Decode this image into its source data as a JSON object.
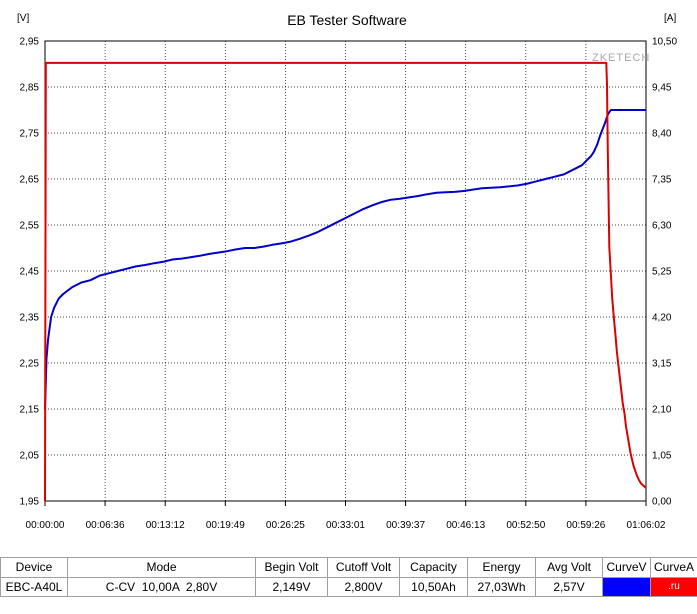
{
  "chart_data": {
    "type": "line",
    "title": "EB Tester Software",
    "brand": "ZKETECH",
    "y_left_unit": "[V]",
    "y_right_unit": "[A]",
    "y_left_ticks": [
      "2,95",
      "2,85",
      "2,75",
      "2,65",
      "2,55",
      "2,45",
      "2,35",
      "2,25",
      "2,15",
      "2,05",
      "1,95"
    ],
    "y_right_ticks": [
      "10,50",
      "9,45",
      "8,40",
      "7,35",
      "6,30",
      "5,25",
      "4,20",
      "3,15",
      "2,10",
      "1,05",
      "0,00"
    ],
    "x_ticks": [
      "00:00:00",
      "00:06:36",
      "00:13:12",
      "00:19:49",
      "00:26:25",
      "00:33:01",
      "00:39:37",
      "00:46:13",
      "00:52:50",
      "00:59:26",
      "01:06:02"
    ],
    "x_range_seconds": [
      0,
      3962
    ],
    "ylim_left": [
      1.95,
      2.95
    ],
    "ylim_right": [
      0,
      10.5
    ],
    "grid": true,
    "series": [
      {
        "axis": "left",
        "color": "#0000c8",
        "x_seconds": [
          0,
          10,
          20,
          40,
          60,
          90,
          120,
          180,
          240,
          300,
          360,
          420,
          480,
          540,
          600,
          660,
          720,
          780,
          840,
          900,
          960,
          1020,
          1080,
          1140,
          1200,
          1260,
          1320,
          1380,
          1440,
          1500,
          1560,
          1620,
          1680,
          1740,
          1800,
          1860,
          1920,
          1980,
          2040,
          2100,
          2160,
          2220,
          2280,
          2340,
          2400,
          2460,
          2520,
          2580,
          2640,
          2700,
          2760,
          2820,
          2880,
          2940,
          3000,
          3060,
          3120,
          3180,
          3240,
          3300,
          3360,
          3420,
          3480,
          3540,
          3570,
          3600,
          3620,
          3640,
          3660,
          3690,
          3710,
          3730,
          3750,
          3962
        ],
        "y": [
          2.149,
          2.26,
          2.3,
          2.35,
          2.37,
          2.39,
          2.4,
          2.415,
          2.425,
          2.43,
          2.44,
          2.445,
          2.45,
          2.455,
          2.46,
          2.463,
          2.467,
          2.47,
          2.475,
          2.477,
          2.48,
          2.483,
          2.487,
          2.49,
          2.493,
          2.497,
          2.5,
          2.5,
          2.503,
          2.507,
          2.51,
          2.514,
          2.52,
          2.527,
          2.535,
          2.545,
          2.555,
          2.565,
          2.575,
          2.585,
          2.593,
          2.6,
          2.605,
          2.607,
          2.61,
          2.613,
          2.617,
          2.62,
          2.621,
          2.622,
          2.624,
          2.627,
          2.63,
          2.631,
          2.632,
          2.634,
          2.636,
          2.64,
          2.645,
          2.65,
          2.655,
          2.66,
          2.67,
          2.68,
          2.69,
          2.7,
          2.71,
          2.725,
          2.745,
          2.77,
          2.79,
          2.8,
          2.8,
          2.8
        ]
      },
      {
        "axis": "right",
        "color": "#dc0000",
        "x_seconds": [
          0,
          5,
          10,
          3700,
          3705,
          3710,
          3720,
          3730,
          3740,
          3750,
          3760,
          3770,
          3780,
          3790,
          3800,
          3810,
          3820,
          3830,
          3840,
          3850,
          3860,
          3870,
          3880,
          3890,
          3900,
          3915,
          3930,
          3945,
          3962
        ],
        "y": [
          0.0,
          10.0,
          10.0,
          10.0,
          9.5,
          8.0,
          5.8,
          5.2,
          4.6,
          4.2,
          3.8,
          3.4,
          3.1,
          2.8,
          2.5,
          2.2,
          2.0,
          1.7,
          1.5,
          1.3,
          1.1,
          0.95,
          0.8,
          0.7,
          0.6,
          0.48,
          0.4,
          0.35,
          0.3
        ]
      }
    ]
  },
  "table": {
    "headers": [
      "Device",
      "Mode",
      "Begin Volt",
      "Cutoff Volt",
      "Capacity",
      "Energy",
      "Avg Volt",
      "CurveV",
      "CurveA"
    ],
    "row": [
      "EBC-A40L",
      "C-CV  10,00A  2,80V",
      "2,149V",
      "2,800V",
      "10,50Ah",
      "27,03Wh",
      "2,57V",
      "",
      ".ru"
    ],
    "swatch_colors": {
      "curve_v": "#0000ff",
      "curve_a": "#ff0000"
    }
  }
}
